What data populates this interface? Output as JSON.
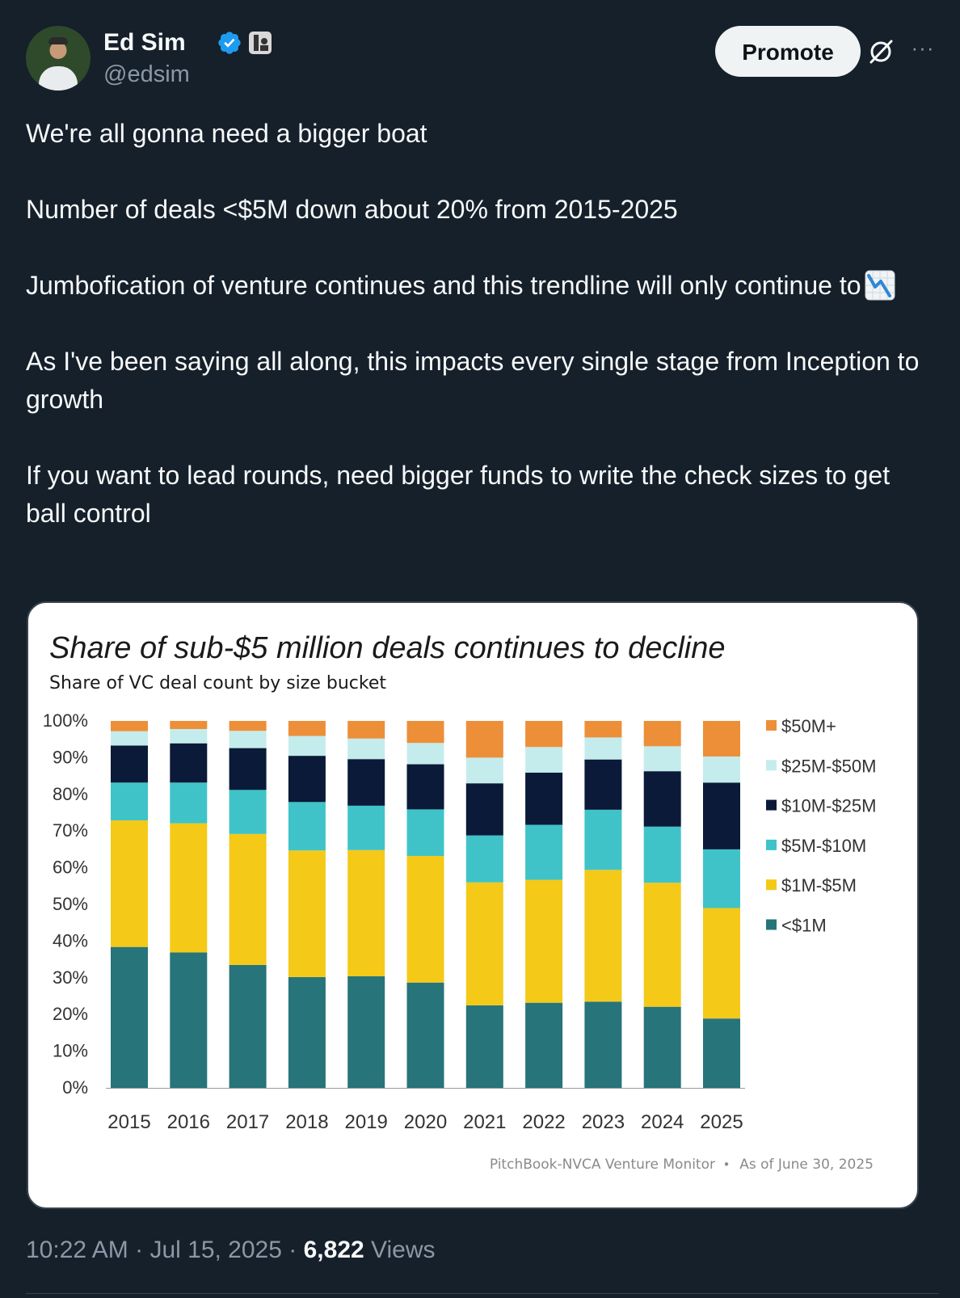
{
  "author": {
    "name": "Ed Sim",
    "handle": "@edsim"
  },
  "actions": {
    "promote_label": "Promote",
    "more_label": "···"
  },
  "tweet": {
    "line1": "We're all gonna need a bigger boat",
    "line2": "Number of deals <$5M down about 20% from 2015-2025",
    "line3": "Jumbofication of venture continues and this trendline will only continue to",
    "line4": "As I've been saying all along, this impacts every single stage from Inception to growth",
    "line5": "If you want to lead rounds, need bigger funds to write the check sizes to get ball control"
  },
  "meta": {
    "time": "10:22 AM",
    "date": "Jul 15, 2025",
    "separator": "·",
    "views_count": "6,822",
    "views_label": "Views"
  },
  "chart_data": {
    "type": "bar",
    "stacked": true,
    "title": "Share of sub-$5 million deals continues to decline",
    "subtitle": "Share of VC deal count by size bucket",
    "source": "PitchBook-NVCA Venture Monitor",
    "source_sep": "•",
    "as_of": "As of June 30, 2025",
    "categories": [
      "2015",
      "2016",
      "2017",
      "2018",
      "2019",
      "2020",
      "2021",
      "2022",
      "2023",
      "2024",
      "2025"
    ],
    "y_ticks": [
      "0%",
      "10%",
      "20%",
      "30%",
      "40%",
      "50%",
      "60%",
      "70%",
      "80%",
      "90%",
      "100%"
    ],
    "ylim": [
      0,
      100
    ],
    "legend_position": "right",
    "series": [
      {
        "name": "<$1M",
        "color": "#27747a",
        "values": [
          38.4,
          36.9,
          33.5,
          30.2,
          30.4,
          28.7,
          22.5,
          23.2,
          23.5,
          22.1,
          18.9
        ]
      },
      {
        "name": "$1M-$5M",
        "color": "#f4c918",
        "values": [
          34.5,
          35.2,
          35.7,
          34.5,
          34.4,
          34.5,
          33.5,
          33.5,
          35.9,
          33.8,
          30.1
        ]
      },
      {
        "name": "$5M-$10M",
        "color": "#3fc3c8",
        "values": [
          10.3,
          11.1,
          12.0,
          13.2,
          12.1,
          12.7,
          12.8,
          15.0,
          16.4,
          15.3,
          16.0
        ]
      },
      {
        "name": "$10M-$25M",
        "color": "#0a1a38",
        "values": [
          10.1,
          10.7,
          11.4,
          12.6,
          12.7,
          12.3,
          14.2,
          14.2,
          13.7,
          15.1,
          18.2
        ]
      },
      {
        "name": "$25M-$50M",
        "color": "#c5eced",
        "values": [
          3.9,
          3.9,
          4.7,
          5.4,
          5.6,
          5.8,
          7.0,
          7.0,
          6.0,
          6.8,
          7.1
        ]
      },
      {
        "name": "$50M+",
        "color": "#ec8f38",
        "values": [
          2.8,
          2.2,
          2.7,
          4.1,
          4.8,
          6.0,
          10.0,
          7.1,
          4.5,
          6.9,
          9.7
        ]
      }
    ]
  }
}
